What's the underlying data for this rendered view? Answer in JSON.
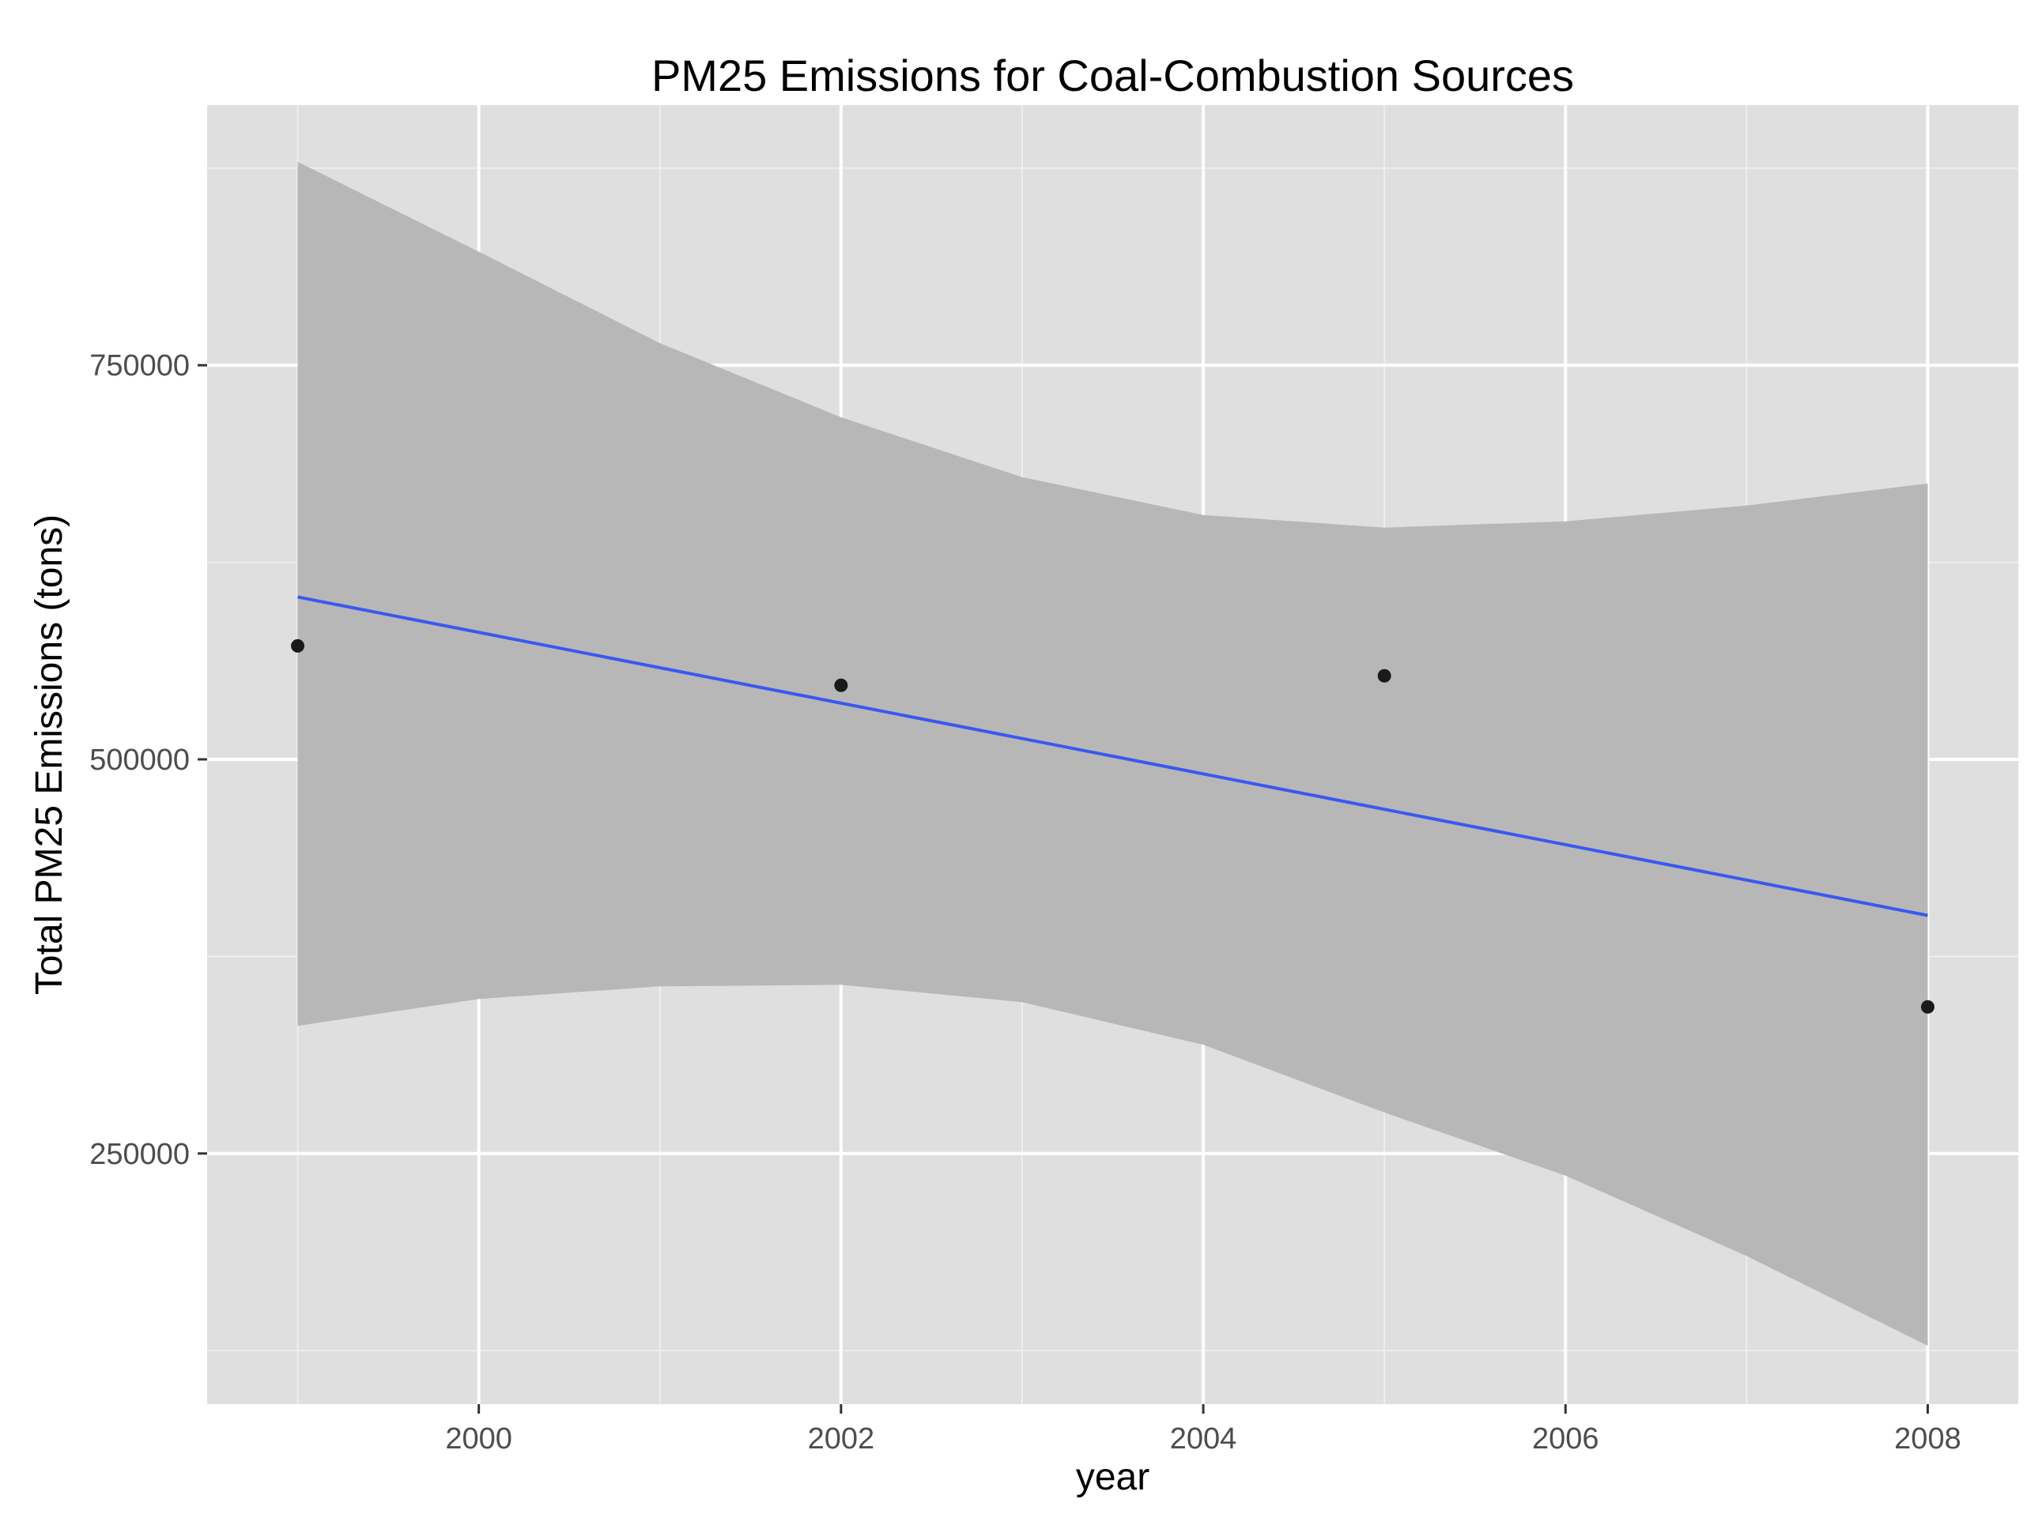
{
  "chart_data": {
    "type": "scatter",
    "title": "PM25 Emissions for Coal-Combustion Sources",
    "xlabel": "year",
    "ylabel": "Total PM25 Emissions (tons)",
    "xlim": [
      1998.5,
      2008.5
    ],
    "ylim": [
      91000,
      915000
    ],
    "x_ticks": [
      2000,
      2002,
      2004,
      2006,
      2008
    ],
    "y_ticks": [
      250000,
      500000,
      750000
    ],
    "x_tick_labels": [
      "2000",
      "2002",
      "2004",
      "2006",
      "2008"
    ],
    "y_tick_labels": [
      "250000",
      "500000",
      "750000"
    ],
    "grid": true,
    "series": [
      {
        "kind": "points",
        "x": [
          1999,
          2002,
          2005,
          2008
        ],
        "y": [
          572000,
          547000,
          553000,
          343000
        ]
      },
      {
        "kind": "linear-fit",
        "x": [
          1999,
          2008
        ],
        "y": [
          603000,
          401000
        ]
      },
      {
        "kind": "confidence-band",
        "x": [
          1999,
          2000,
          2001,
          2002,
          2003,
          2004,
          2005,
          2006,
          2007,
          2008
        ],
        "upper": [
          879000,
          822000,
          764000,
          717000,
          679000,
          655000,
          647000,
          651000,
          661000,
          675000
        ],
        "lower": [
          331000,
          348000,
          356000,
          357000,
          346000,
          319000,
          276000,
          236000,
          185000,
          128000
        ]
      }
    ],
    "colors": {
      "panel_background": "#dfdfdf",
      "grid_major": "#ffffff",
      "grid_minor": "#eeeeee",
      "band_fill": "#b7b7b7",
      "fit_line": "#3a58f0",
      "points": "#1a1a1a",
      "tick_text": "#4d4d4d"
    }
  }
}
